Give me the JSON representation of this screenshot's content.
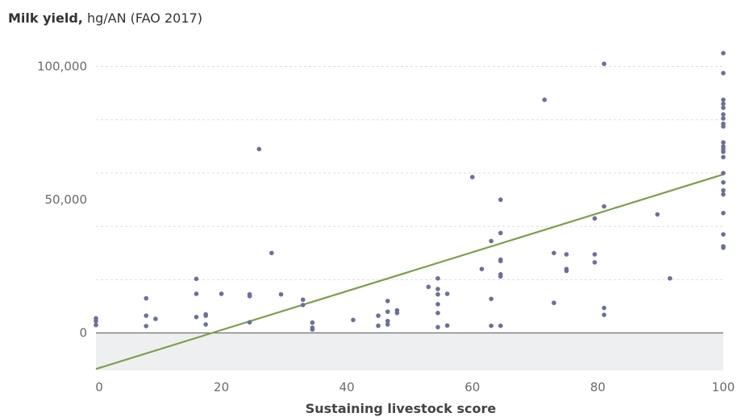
{
  "title": {
    "bold": "Milk yield,",
    "rest": " hg/AN (FAO 2017)"
  },
  "colors": {
    "points": "#6b6f9b",
    "trendline": "#7aa04a",
    "grid": "#dddddd",
    "negative_band": "#eeeff0",
    "zero_line": "#555555"
  },
  "chart_data": {
    "type": "scatter",
    "title": "Milk yield, hg/AN (FAO 2017)",
    "xlabel": "Sustaining livestock score",
    "ylabel": "",
    "xlim": [
      0,
      100
    ],
    "ylim": [
      -14000,
      105000
    ],
    "x_ticks": [
      {
        "value": 0,
        "label": "0"
      },
      {
        "value": 20,
        "label": "20"
      },
      {
        "value": 40,
        "label": "40"
      },
      {
        "value": 60,
        "label": "60"
      },
      {
        "value": 80,
        "label": "80"
      },
      {
        "value": 100,
        "label": "100"
      }
    ],
    "y_ticks": [
      {
        "value": 0,
        "label": "0"
      },
      {
        "value": 50000,
        "label": "50,000"
      },
      {
        "value": 100000,
        "label": "100,000"
      }
    ],
    "y_gridlines": [
      20000,
      40000,
      60000,
      80000,
      100000
    ],
    "trendline": {
      "x": [
        0,
        100
      ],
      "y": [
        -13500,
        59500
      ]
    },
    "points": [
      [
        0,
        5500
      ],
      [
        0,
        4500
      ],
      [
        0,
        3000
      ],
      [
        8,
        13000
      ],
      [
        8,
        6500
      ],
      [
        8,
        2600
      ],
      [
        9.5,
        5300
      ],
      [
        16,
        20300
      ],
      [
        16,
        14700
      ],
      [
        16,
        6000
      ],
      [
        17.5,
        7000
      ],
      [
        17.5,
        6500
      ],
      [
        17.5,
        3200
      ],
      [
        20,
        14700
      ],
      [
        24.5,
        14500
      ],
      [
        24.5,
        13800
      ],
      [
        24.5,
        4000
      ],
      [
        26,
        69000
      ],
      [
        28,
        30000
      ],
      [
        29.5,
        14500
      ],
      [
        33,
        12500
      ],
      [
        33,
        10500
      ],
      [
        34.5,
        3900
      ],
      [
        34.5,
        2000
      ],
      [
        34.5,
        1300
      ],
      [
        41,
        4900
      ],
      [
        45,
        6500
      ],
      [
        45,
        2700
      ],
      [
        46.5,
        12000
      ],
      [
        46.5,
        8000
      ],
      [
        46.5,
        4500
      ],
      [
        46.5,
        3200
      ],
      [
        48,
        8500
      ],
      [
        48,
        7500
      ],
      [
        53,
        17300
      ],
      [
        54.5,
        20500
      ],
      [
        54.5,
        16500
      ],
      [
        54.5,
        14500
      ],
      [
        54.5,
        10800
      ],
      [
        54.5,
        7500
      ],
      [
        54.5,
        2200
      ],
      [
        56,
        14700
      ],
      [
        56,
        2800
      ],
      [
        60,
        58500
      ],
      [
        61.5,
        24000
      ],
      [
        63,
        34500
      ],
      [
        63,
        12800
      ],
      [
        63,
        2700
      ],
      [
        64.5,
        50000
      ],
      [
        64.5,
        37500
      ],
      [
        64.5,
        27500
      ],
      [
        64.5,
        27000
      ],
      [
        64.5,
        22000
      ],
      [
        64.5,
        21200
      ],
      [
        64.5,
        2700
      ],
      [
        71.5,
        87500
      ],
      [
        73,
        30000
      ],
      [
        73,
        11300
      ],
      [
        75,
        29500
      ],
      [
        75,
        24000
      ],
      [
        75,
        23300
      ],
      [
        79.5,
        43000
      ],
      [
        79.5,
        29500
      ],
      [
        79.5,
        26500
      ],
      [
        81,
        101000
      ],
      [
        81,
        47500
      ],
      [
        81,
        9400
      ],
      [
        81,
        6800
      ],
      [
        89.5,
        44500
      ],
      [
        91.5,
        20500
      ],
      [
        100,
        105000
      ],
      [
        100,
        97500
      ],
      [
        100,
        87500
      ],
      [
        100,
        86000
      ],
      [
        100,
        84500
      ],
      [
        100,
        82000
      ],
      [
        100,
        80500
      ],
      [
        100,
        78500
      ],
      [
        100,
        77500
      ],
      [
        100,
        71500
      ],
      [
        100,
        70000
      ],
      [
        100,
        69000
      ],
      [
        100,
        68000
      ],
      [
        100,
        66000
      ],
      [
        100,
        60000
      ],
      [
        100,
        56500
      ],
      [
        100,
        53500
      ],
      [
        100,
        52000
      ],
      [
        100,
        45000
      ],
      [
        100,
        37000
      ],
      [
        100,
        32500
      ],
      [
        100,
        32000
      ]
    ]
  }
}
